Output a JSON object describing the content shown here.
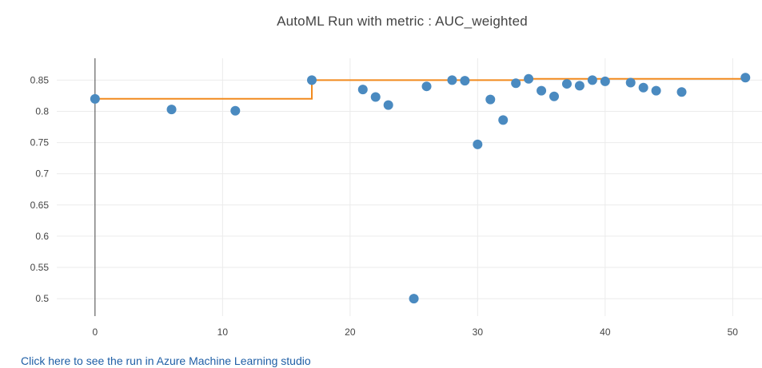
{
  "chart_data": {
    "type": "scatter",
    "title": "AutoML Run with metric : AUC_weighted",
    "xlabel": "",
    "ylabel": "",
    "xlim": [
      -3,
      52.3
    ],
    "ylim": [
      0.472,
      0.885
    ],
    "x_ticks": [
      0,
      10,
      20,
      30,
      40,
      50
    ],
    "y_ticks": [
      0.5,
      0.55,
      0.6,
      0.65,
      0.7,
      0.75,
      0.8,
      0.85
    ],
    "y_tick_labels": [
      "0.5",
      "0.55",
      "0.6",
      "0.65",
      "0.7",
      "0.75",
      "0.8",
      "0.85"
    ],
    "grid": true,
    "series": [
      {
        "kind": "markers",
        "color": "#4a8ac0",
        "points": [
          [
            0,
            0.82
          ],
          [
            6,
            0.803
          ],
          [
            11,
            0.801
          ],
          [
            17,
            0.85
          ],
          [
            21,
            0.835
          ],
          [
            22,
            0.823
          ],
          [
            23,
            0.81
          ],
          [
            25,
            0.5
          ],
          [
            26,
            0.84
          ],
          [
            28,
            0.85
          ],
          [
            29,
            0.849
          ],
          [
            30,
            0.747
          ],
          [
            31,
            0.819
          ],
          [
            32,
            0.786
          ],
          [
            33,
            0.845
          ],
          [
            34,
            0.852
          ],
          [
            35,
            0.833
          ],
          [
            36,
            0.824
          ],
          [
            37,
            0.844
          ],
          [
            38,
            0.841
          ],
          [
            39,
            0.85
          ],
          [
            40,
            0.848
          ],
          [
            42,
            0.846
          ],
          [
            43,
            0.838
          ],
          [
            44,
            0.833
          ],
          [
            46,
            0.831
          ],
          [
            51,
            0.854
          ]
        ]
      },
      {
        "kind": "line",
        "shape": "step",
        "color": "#f28a1e",
        "points": [
          [
            0,
            0.82
          ],
          [
            17,
            0.82
          ],
          [
            17,
            0.85
          ],
          [
            34,
            0.85
          ],
          [
            34,
            0.852
          ],
          [
            51,
            0.852
          ]
        ]
      }
    ]
  },
  "link": {
    "text": "Click here to see the run in Azure Machine Learning studio"
  }
}
